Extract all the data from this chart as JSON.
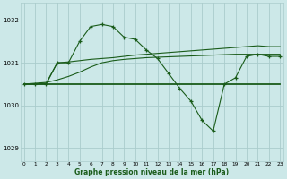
{
  "bg_color": "#cce8e8",
  "grid_color": "#aacccc",
  "line_color": "#1a5c1a",
  "hours": [
    0,
    1,
    2,
    3,
    4,
    5,
    6,
    7,
    8,
    9,
    10,
    11,
    12,
    13,
    14,
    15,
    16,
    17,
    18,
    19,
    20,
    21,
    22,
    23
  ],
  "line_dashed_markers": [
    1030.5,
    1030.5,
    1030.5,
    1031.0,
    1031.0,
    1031.5,
    1031.85,
    1031.9,
    1031.85,
    1031.6,
    1031.55,
    1031.3,
    1031.1,
    1030.75,
    1030.4,
    1030.1,
    1029.65,
    1029.4,
    1030.5,
    1030.65,
    1031.15,
    1031.2,
    1031.15,
    1031.15
  ],
  "line_flat": [
    1030.5,
    1030.5,
    1030.5,
    1030.5,
    1030.5,
    1030.5,
    1030.5,
    1030.5,
    1030.5,
    1030.5,
    1030.5,
    1030.5,
    1030.5,
    1030.5,
    1030.5,
    1030.5,
    1030.5,
    1030.5,
    1030.5,
    1030.5,
    1030.5,
    1030.5,
    1030.5,
    1030.5
  ],
  "line_rise1": [
    1030.5,
    1030.52,
    1030.54,
    1030.6,
    1030.68,
    1030.78,
    1030.9,
    1031.0,
    1031.05,
    1031.08,
    1031.1,
    1031.12,
    1031.13,
    1031.14,
    1031.15,
    1031.16,
    1031.17,
    1031.18,
    1031.19,
    1031.2,
    1031.2,
    1031.2,
    1031.2,
    1031.2
  ],
  "line_rise2": [
    1030.5,
    1030.5,
    1030.52,
    1031.0,
    1031.02,
    1031.05,
    1031.08,
    1031.1,
    1031.12,
    1031.15,
    1031.18,
    1031.2,
    1031.22,
    1031.24,
    1031.26,
    1031.28,
    1031.3,
    1031.32,
    1031.34,
    1031.36,
    1031.38,
    1031.4,
    1031.38,
    1031.38
  ],
  "ylabel_ticks": [
    1029,
    1030,
    1031,
    1032
  ],
  "xlabel": "Graphe pression niveau de la mer (hPa)",
  "ylim": [
    1028.7,
    1032.4
  ],
  "xlim": [
    -0.3,
    23.3
  ]
}
